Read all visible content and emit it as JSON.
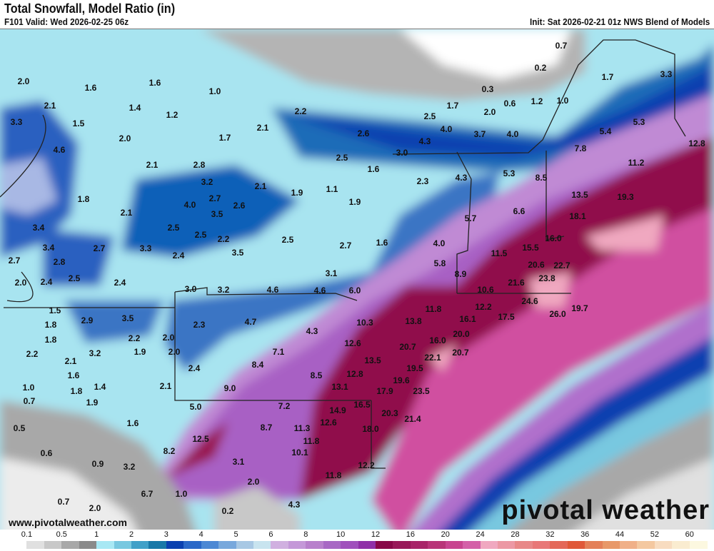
{
  "header": {
    "title": "Total Snowfall, Model Ratio (in)",
    "valid": "F101 Valid: Wed 2026-02-25 06z",
    "init": "Init: Sat 2026-02-21 01z NWS Blend of Models"
  },
  "footer": {
    "url": "www.pivotalweather.com",
    "brand": "pivotal weather"
  },
  "colorbar": {
    "labels": [
      "0.1",
      "0.5",
      "1",
      "2",
      "3",
      "4",
      "5",
      "6",
      "8",
      "10",
      "12",
      "16",
      "20",
      "24",
      "28",
      "32",
      "36",
      "44",
      "52",
      "60"
    ],
    "colors": [
      "#ffffff",
      "#e0e0e0",
      "#c8c8c8",
      "#a8a8a8",
      "#8a8a8a",
      "#a8e8f4",
      "#78c8e0",
      "#40a0c8",
      "#1878a8",
      "#0a40b0",
      "#2a68c8",
      "#4c88d4",
      "#78a8dc",
      "#a8c8e4",
      "#c8e4ef",
      "#d0b0e0",
      "#c498d8",
      "#b880cc",
      "#a868c4",
      "#a050bc",
      "#9030a8",
      "#880848",
      "#981858",
      "#a82468",
      "#b83478",
      "#c84490",
      "#d460a8",
      "#f0a8c0",
      "#ec98a4",
      "#e88888",
      "#e87878",
      "#e46858",
      "#e05838",
      "#e48058",
      "#e89868",
      "#f0b088",
      "#f4c8a0",
      "#f8dcc0",
      "#faecd0",
      "#fcf8e0"
    ]
  },
  "snowfall_labels": [
    "0.7",
    "0.2",
    "0.3",
    "1.7",
    "0.6",
    "1.2",
    "1.0",
    "2.0",
    "2.5",
    "4.0",
    "3.7",
    "4.0",
    "4.3",
    "2.6",
    "3.0",
    "1.6",
    "2.3",
    "4.3",
    "5.3",
    "8.5",
    "7.8",
    "1.7",
    "3.3",
    "5.4",
    "5.3",
    "11.2",
    "12.8",
    "13.5",
    "19.3",
    "18.1",
    "6.6",
    "5.7",
    "16.0",
    "15.5",
    "11.5",
    "20.6",
    "22.7",
    "23.8",
    "21.6",
    "10.6",
    "8.9",
    "5.8",
    "4.0",
    "12.2",
    "16.1",
    "17.5",
    "24.6",
    "26.0",
    "19.7",
    "11.8",
    "13.8",
    "16.0",
    "20.0",
    "20.7",
    "22.1",
    "20.7",
    "19.5",
    "19.6",
    "23.5",
    "17.9",
    "20.3",
    "21.4",
    "18.0",
    "16.5",
    "14.9",
    "12.6",
    "11.3",
    "11.8",
    "10.1",
    "11.8",
    "12.2",
    "13.1",
    "12.8",
    "13.5",
    "12.6",
    "10.3",
    "8.5",
    "8.4",
    "7.1",
    "4.3",
    "4.7",
    "9.0",
    "12.5",
    "8.2",
    "8.7",
    "7.2",
    "5.0",
    "3.1",
    "2.0",
    "1.0",
    "6.7",
    "4.3",
    "0.2",
    "2.0",
    "0.7",
    "0.9",
    "3.2",
    "1.6",
    "0.6",
    "0.5",
    "2.1",
    "2.4",
    "2.0",
    "2.3",
    "3.0",
    "3.2",
    "4.6",
    "4.6",
    "6.0",
    "3.1",
    "2.7",
    "1.6",
    "2.5",
    "3.5",
    "2.2",
    "3.3",
    "2.4",
    "2.5",
    "2.5",
    "4.0",
    "3.5",
    "2.7",
    "3.2",
    "2.8",
    "2.1",
    "2.6",
    "1.9",
    "1.1",
    "1.9",
    "2.5",
    "2.1",
    "2.2",
    "1.7",
    "1.0",
    "1.6",
    "1.6",
    "1.4",
    "1.2",
    "2.1",
    "1.5",
    "2.0",
    "2.1",
    "2.0",
    "3.3",
    "4.6",
    "1.8",
    "2.1",
    "3.4",
    "3.4",
    "2.7",
    "2.8",
    "2.7",
    "2.0",
    "2.4",
    "2.5",
    "2.4",
    "1.5",
    "2.9",
    "3.5",
    "1.8",
    "1.8",
    "2.2",
    "2.0",
    "1.9",
    "2.2",
    "3.2",
    "2.1",
    "1.6",
    "1.4",
    "1.8",
    "1.9",
    "1.0",
    "0.7"
  ]
}
